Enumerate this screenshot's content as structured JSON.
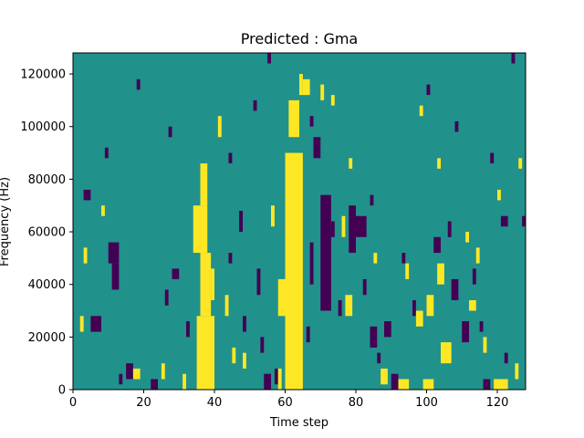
{
  "chart_data": {
    "type": "heatmap",
    "title": "Predicted : Gma",
    "xlabel": "Time step",
    "ylabel": "Frequency (Hz)",
    "xlim": [
      0,
      128
    ],
    "ylim": [
      0,
      128000
    ],
    "x_ticks": [
      0,
      20,
      40,
      60,
      80,
      100,
      120
    ],
    "y_ticks": [
      0,
      20000,
      40000,
      60000,
      80000,
      100000,
      120000
    ],
    "x_tick_labels": [
      "0",
      "20",
      "40",
      "60",
      "80",
      "100",
      "120"
    ],
    "y_tick_labels": [
      "0",
      "20000",
      "40000",
      "60000",
      "80000",
      "100000",
      "120000"
    ],
    "grid": false,
    "colormap": "viridis",
    "value_range": [
      -1,
      1
    ],
    "colors": {
      "low": "#440154",
      "mid": "#21918c",
      "high": "#fde725"
    },
    "background_value": 0,
    "cells": [
      {
        "x": 35,
        "w": 5,
        "y": 0,
        "h": 28000,
        "v": 1
      },
      {
        "x": 36,
        "w": 3,
        "y": 28000,
        "h": 24000,
        "v": 1
      },
      {
        "x": 34,
        "w": 4,
        "y": 52000,
        "h": 18000,
        "v": 1
      },
      {
        "x": 36,
        "w": 2,
        "y": 70000,
        "h": 16000,
        "v": 1
      },
      {
        "x": 39,
        "w": 1,
        "y": 34000,
        "h": 12000,
        "v": 1
      },
      {
        "x": 41,
        "w": 1,
        "y": 96000,
        "h": 8000,
        "v": 1
      },
      {
        "x": 60,
        "w": 5,
        "y": 0,
        "h": 90000,
        "v": 1
      },
      {
        "x": 58,
        "w": 2,
        "y": 28000,
        "h": 14000,
        "v": 1
      },
      {
        "x": 61,
        "w": 3,
        "y": 96000,
        "h": 14000,
        "v": 1
      },
      {
        "x": 64,
        "w": 1,
        "y": 112000,
        "h": 8000,
        "v": 1
      },
      {
        "x": 70,
        "w": 3,
        "y": 30000,
        "h": 44000,
        "v": -1
      },
      {
        "x": 67,
        "w": 1,
        "y": 40000,
        "h": 16000,
        "v": -1
      },
      {
        "x": 78,
        "w": 2,
        "y": 52000,
        "h": 18000,
        "v": -1
      },
      {
        "x": 80,
        "w": 3,
        "y": 58000,
        "h": 8000,
        "v": -1
      },
      {
        "x": 68,
        "w": 2,
        "y": 88000,
        "h": 8000,
        "v": -1
      },
      {
        "x": 10,
        "w": 3,
        "y": 48000,
        "h": 8000,
        "v": -1
      },
      {
        "x": 5,
        "w": 3,
        "y": 22000,
        "h": 6000,
        "v": -1
      },
      {
        "x": 11,
        "w": 2,
        "y": 38000,
        "h": 10000,
        "v": -1
      },
      {
        "x": 3,
        "w": 2,
        "y": 72000,
        "h": 4000,
        "v": -1
      },
      {
        "x": 15,
        "w": 2,
        "y": 4000,
        "h": 6000,
        "v": -1
      },
      {
        "x": 22,
        "w": 2,
        "y": 0,
        "h": 4000,
        "v": -1
      },
      {
        "x": 28,
        "w": 2,
        "y": 42000,
        "h": 4000,
        "v": -1
      },
      {
        "x": 47,
        "w": 1,
        "y": 60000,
        "h": 8000,
        "v": -1
      },
      {
        "x": 52,
        "w": 1,
        "y": 36000,
        "h": 10000,
        "v": -1
      },
      {
        "x": 53,
        "w": 1,
        "y": 14000,
        "h": 6000,
        "v": -1
      },
      {
        "x": 54,
        "w": 2,
        "y": 0,
        "h": 6000,
        "v": -1
      },
      {
        "x": 57,
        "w": 1,
        "y": 2000,
        "h": 6000,
        "v": -1
      },
      {
        "x": 75,
        "w": 1,
        "y": 28000,
        "h": 6000,
        "v": -1
      },
      {
        "x": 84,
        "w": 2,
        "y": 16000,
        "h": 8000,
        "v": -1
      },
      {
        "x": 88,
        "w": 2,
        "y": 20000,
        "h": 6000,
        "v": -1
      },
      {
        "x": 90,
        "w": 2,
        "y": 0,
        "h": 6000,
        "v": -1
      },
      {
        "x": 96,
        "w": 1,
        "y": 28000,
        "h": 6000,
        "v": -1
      },
      {
        "x": 102,
        "w": 2,
        "y": 52000,
        "h": 6000,
        "v": -1
      },
      {
        "x": 107,
        "w": 2,
        "y": 34000,
        "h": 8000,
        "v": -1
      },
      {
        "x": 110,
        "w": 2,
        "y": 18000,
        "h": 8000,
        "v": -1
      },
      {
        "x": 116,
        "w": 2,
        "y": 0,
        "h": 4000,
        "v": -1
      },
      {
        "x": 121,
        "w": 2,
        "y": 62000,
        "h": 4000,
        "v": -1
      },
      {
        "x": 127,
        "w": 1,
        "y": 62000,
        "h": 4000,
        "v": -1
      },
      {
        "x": 118,
        "w": 1,
        "y": 86000,
        "h": 4000,
        "v": -1
      },
      {
        "x": 108,
        "w": 1,
        "y": 98000,
        "h": 4000,
        "v": -1
      },
      {
        "x": 124,
        "w": 1,
        "y": 124000,
        "h": 4000,
        "v": -1
      },
      {
        "x": 87,
        "w": 2,
        "y": 2000,
        "h": 6000,
        "v": 1
      },
      {
        "x": 92,
        "w": 3,
        "y": 0,
        "h": 4000,
        "v": 1
      },
      {
        "x": 99,
        "w": 3,
        "y": 0,
        "h": 4000,
        "v": 1
      },
      {
        "x": 104,
        "w": 3,
        "y": 10000,
        "h": 8000,
        "v": 1
      },
      {
        "x": 100,
        "w": 2,
        "y": 28000,
        "h": 8000,
        "v": 1
      },
      {
        "x": 103,
        "w": 2,
        "y": 40000,
        "h": 8000,
        "v": 1
      },
      {
        "x": 77,
        "w": 2,
        "y": 28000,
        "h": 8000,
        "v": 1
      },
      {
        "x": 76,
        "w": 1,
        "y": 58000,
        "h": 8000,
        "v": 1
      },
      {
        "x": 112,
        "w": 2,
        "y": 30000,
        "h": 4000,
        "v": 1
      },
      {
        "x": 119,
        "w": 4,
        "y": 0,
        "h": 4000,
        "v": 1
      },
      {
        "x": 125,
        "w": 1,
        "y": 4000,
        "h": 6000,
        "v": 1
      },
      {
        "x": 111,
        "w": 1,
        "y": 56000,
        "h": 4000,
        "v": 1
      },
      {
        "x": 103,
        "w": 1,
        "y": 84000,
        "h": 4000,
        "v": 1
      },
      {
        "x": 98,
        "w": 1,
        "y": 104000,
        "h": 4000,
        "v": 1
      },
      {
        "x": 126,
        "w": 1,
        "y": 84000,
        "h": 4000,
        "v": 1
      },
      {
        "x": 120,
        "w": 1,
        "y": 72000,
        "h": 4000,
        "v": 1
      },
      {
        "x": 85,
        "w": 1,
        "y": 48000,
        "h": 4000,
        "v": 1
      },
      {
        "x": 17,
        "w": 2,
        "y": 4000,
        "h": 4000,
        "v": 1
      },
      {
        "x": 3,
        "w": 1,
        "y": 48000,
        "h": 6000,
        "v": 1
      },
      {
        "x": 2,
        "w": 1,
        "y": 22000,
        "h": 6000,
        "v": 1
      },
      {
        "x": 8,
        "w": 1,
        "y": 66000,
        "h": 4000,
        "v": 1
      },
      {
        "x": 25,
        "w": 1,
        "y": 4000,
        "h": 6000,
        "v": 1
      },
      {
        "x": 31,
        "w": 1,
        "y": 0,
        "h": 6000,
        "v": 1
      },
      {
        "x": 43,
        "w": 1,
        "y": 28000,
        "h": 8000,
        "v": 1
      },
      {
        "x": 45,
        "w": 1,
        "y": 10000,
        "h": 6000,
        "v": 1
      },
      {
        "x": 48,
        "w": 1,
        "y": 8000,
        "h": 6000,
        "v": 1
      },
      {
        "x": 56,
        "w": 1,
        "y": 62000,
        "h": 8000,
        "v": 1
      },
      {
        "x": 58,
        "w": 1,
        "y": 0,
        "h": 8000,
        "v": 1
      },
      {
        "x": 62,
        "w": 1,
        "y": 74000,
        "h": 6000,
        "v": 1
      },
      {
        "x": 65,
        "w": 2,
        "y": 112000,
        "h": 6000,
        "v": 1
      },
      {
        "x": 70,
        "w": 1,
        "y": 110000,
        "h": 6000,
        "v": 1
      },
      {
        "x": 73,
        "w": 1,
        "y": 108000,
        "h": 4000,
        "v": 1
      },
      {
        "x": 78,
        "w": 1,
        "y": 84000,
        "h": 4000,
        "v": 1
      },
      {
        "x": 94,
        "w": 1,
        "y": 42000,
        "h": 6000,
        "v": 1
      },
      {
        "x": 97,
        "w": 2,
        "y": 24000,
        "h": 6000,
        "v": 1
      },
      {
        "x": 114,
        "w": 1,
        "y": 48000,
        "h": 6000,
        "v": 1
      },
      {
        "x": 116,
        "w": 1,
        "y": 14000,
        "h": 6000,
        "v": 1
      },
      {
        "x": 13,
        "w": 1,
        "y": 2000,
        "h": 4000,
        "v": -1
      },
      {
        "x": 26,
        "w": 1,
        "y": 32000,
        "h": 6000,
        "v": -1
      },
      {
        "x": 32,
        "w": 1,
        "y": 20000,
        "h": 6000,
        "v": -1
      },
      {
        "x": 44,
        "w": 1,
        "y": 48000,
        "h": 4000,
        "v": -1
      },
      {
        "x": 48,
        "w": 1,
        "y": 22000,
        "h": 6000,
        "v": -1
      },
      {
        "x": 66,
        "w": 1,
        "y": 18000,
        "h": 6000,
        "v": -1
      },
      {
        "x": 73,
        "w": 1,
        "y": 58000,
        "h": 6000,
        "v": -1
      },
      {
        "x": 82,
        "w": 1,
        "y": 36000,
        "h": 6000,
        "v": -1
      },
      {
        "x": 86,
        "w": 1,
        "y": 10000,
        "h": 4000,
        "v": -1
      },
      {
        "x": 93,
        "w": 1,
        "y": 48000,
        "h": 4000,
        "v": -1
      },
      {
        "x": 106,
        "w": 1,
        "y": 58000,
        "h": 6000,
        "v": -1
      },
      {
        "x": 113,
        "w": 1,
        "y": 40000,
        "h": 6000,
        "v": -1
      },
      {
        "x": 115,
        "w": 1,
        "y": 22000,
        "h": 4000,
        "v": -1
      },
      {
        "x": 122,
        "w": 1,
        "y": 10000,
        "h": 4000,
        "v": -1
      },
      {
        "x": 9,
        "w": 1,
        "y": 88000,
        "h": 4000,
        "v": -1
      },
      {
        "x": 18,
        "w": 1,
        "y": 114000,
        "h": 4000,
        "v": -1
      },
      {
        "x": 27,
        "w": 1,
        "y": 96000,
        "h": 4000,
        "v": -1
      },
      {
        "x": 44,
        "w": 1,
        "y": 86000,
        "h": 4000,
        "v": -1
      },
      {
        "x": 51,
        "w": 1,
        "y": 106000,
        "h": 4000,
        "v": -1
      },
      {
        "x": 55,
        "w": 1,
        "y": 124000,
        "h": 4000,
        "v": -1
      },
      {
        "x": 67,
        "w": 1,
        "y": 100000,
        "h": 4000,
        "v": -1
      },
      {
        "x": 84,
        "w": 1,
        "y": 70000,
        "h": 4000,
        "v": -1
      },
      {
        "x": 100,
        "w": 1,
        "y": 112000,
        "h": 4000,
        "v": -1
      }
    ]
  }
}
